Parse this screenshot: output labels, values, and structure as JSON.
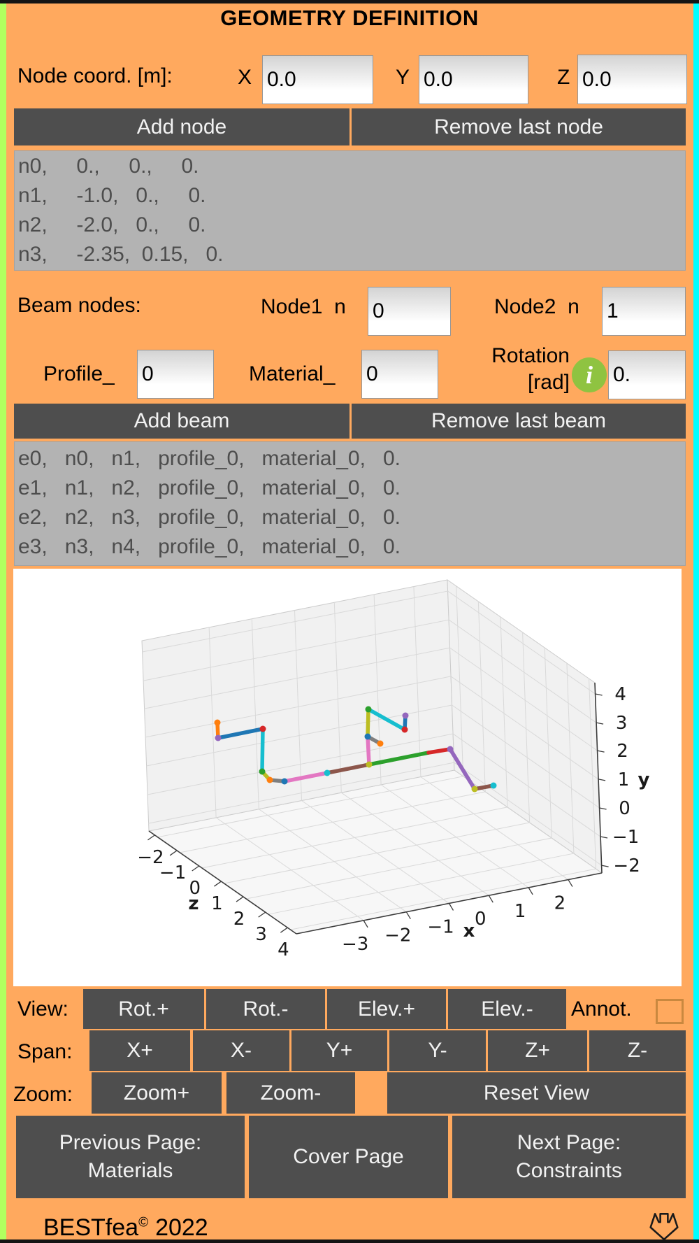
{
  "window": {
    "title": "GEOMETRY DEFINITION",
    "app": "BESTfea",
    "copyright_mark": "©",
    "year": "2022"
  },
  "colors": {
    "background": "#ffa95e",
    "button": "#4e4e4e",
    "list_bg": "#b3b3b3",
    "left_edge": "#b2ff5f",
    "right_edge": "#00ffff",
    "frame_bar": "#141414",
    "info_icon": "#8fc341",
    "checkbox_border": "#c9883f"
  },
  "node_section": {
    "label": "Node coord. [m]:",
    "x_label": "X",
    "x_value": "0.0",
    "y_label": "Y",
    "y_value": "0.0",
    "z_label": "Z",
    "z_value": "0.0",
    "add_button": "Add node",
    "remove_button": "Remove last node",
    "list_rows": [
      "n0,     0.,     0.,     0.",
      "n1,     -1.0,   0.,     0.",
      "n2,     -2.0,   0.,     0.",
      "n3,     -2.35,  0.15,   0."
    ]
  },
  "beam_section": {
    "label": "Beam nodes:",
    "node1_label": "Node1  n",
    "node1_value": "0",
    "node2_label": "Node2  n",
    "node2_value": "1",
    "profile_label": "Profile_",
    "profile_value": "0",
    "material_label": "Material_",
    "material_value": "0",
    "rotation_label_line1": "Rotation",
    "rotation_label_line2": "[rad]",
    "rotation_info_glyph": "i",
    "rotation_value": "0.",
    "add_button": "Add beam",
    "remove_button": "Remove last beam",
    "list_rows": [
      "e0,   n0,   n1,   profile_0,   material_0,   0.",
      "e1,   n1,   n2,   profile_0,   material_0,   0.",
      "e2,   n2,   n3,   profile_0,   material_0,   0.",
      "e3,   n3,   n4,   profile_0,   material_0,   0."
    ]
  },
  "plot": {
    "type": "3d-structure",
    "box": {
      "L": [
        194,
        375
      ],
      "B": [
        405,
        522
      ],
      "R": [
        842,
        435
      ],
      "up": [
        -10,
        -272
      ]
    },
    "pane_fill": "#f1f1f1",
    "floor_fill": "#f7f7f7",
    "grid": "#d9d9d9",
    "edge": "#cccccc",
    "spine": "#3c3c3c",
    "x_axis": {
      "letter": "x",
      "letter_pos": [
        652,
        526
      ],
      "ticks": [
        "−3",
        "−2",
        "−1",
        "0",
        "1",
        "2"
      ],
      "fracs": [
        0.22,
        0.36,
        0.5,
        0.63,
        0.76,
        0.89
      ]
    },
    "z_axis": {
      "letter": "z",
      "letter_pos": [
        258,
        487
      ],
      "ticks": [
        "−2",
        "−1",
        "0",
        "1",
        "2",
        "3",
        "4"
      ],
      "fracs": [
        0.04,
        0.19,
        0.34,
        0.49,
        0.64,
        0.79,
        0.94
      ]
    },
    "y_axis": {
      "letter": "y",
      "letter_pos": [
        902,
        310
      ],
      "ticks": [
        "4",
        "3",
        "2",
        "1",
        "0",
        "−1",
        "−2"
      ],
      "fracs": [
        0.941,
        0.79,
        0.643,
        0.493,
        0.342,
        0.191,
        0.04
      ]
    },
    "beams": [
      {
        "c": "#ff7f0e",
        "a": [
          292,
          220
        ],
        "b": [
          293,
          242
        ]
      },
      {
        "c": "#1f77b4",
        "a": [
          293,
          242
        ],
        "b": [
          357,
          229
        ]
      },
      {
        "c": "#17becf",
        "a": [
          357,
          229
        ],
        "b": [
          356,
          290
        ]
      },
      {
        "c": "#bcbd22",
        "a": [
          356,
          290
        ],
        "b": [
          367,
          302
        ]
      },
      {
        "c": "#7f7f7f",
        "a": [
          367,
          302
        ],
        "b": [
          388,
          304
        ]
      },
      {
        "c": "#e377c2",
        "a": [
          388,
          304
        ],
        "b": [
          449,
          292
        ]
      },
      {
        "c": "#8c564b",
        "a": [
          449,
          292
        ],
        "b": [
          509,
          280
        ]
      },
      {
        "c": "#e377c2",
        "a": [
          509,
          280
        ],
        "b": [
          507,
          240
        ]
      },
      {
        "c": "#bcbd22",
        "a": [
          507,
          240
        ],
        "b": [
          508,
          201
        ]
      },
      {
        "c": "#7f7f7f",
        "a": [
          507,
          240
        ],
        "b": [
          525,
          250
        ]
      },
      {
        "c": "#17becf",
        "a": [
          508,
          201
        ],
        "b": [
          560,
          230
        ]
      },
      {
        "c": "#1f77b4",
        "a": [
          560,
          230
        ],
        "b": [
          561,
          210
        ]
      },
      {
        "c": "#2ca02c",
        "a": [
          509,
          280
        ],
        "b": [
          594,
          263
        ]
      },
      {
        "c": "#d62728",
        "a": [
          594,
          263
        ],
        "b": [
          625,
          258
        ]
      },
      {
        "c": "#9467bd",
        "a": [
          625,
          258
        ],
        "b": [
          660,
          315
        ]
      },
      {
        "c": "#8c564b",
        "a": [
          660,
          315
        ],
        "b": [
          687,
          310
        ]
      }
    ],
    "nodes": [
      {
        "c": "#ff7f0e",
        "p": [
          292,
          220
        ]
      },
      {
        "c": "#9467bd",
        "p": [
          293,
          242
        ]
      },
      {
        "c": "#d62728",
        "p": [
          357,
          229
        ]
      },
      {
        "c": "#2ca02c",
        "p": [
          356,
          290
        ]
      },
      {
        "c": "#ff7f0e",
        "p": [
          367,
          302
        ]
      },
      {
        "c": "#1f77b4",
        "p": [
          388,
          304
        ]
      },
      {
        "c": "#17becf",
        "p": [
          449,
          292
        ]
      },
      {
        "c": "#bcbd22",
        "p": [
          509,
          280
        ]
      },
      {
        "c": "#1f77b4",
        "p": [
          507,
          240
        ]
      },
      {
        "c": "#ff7f0e",
        "p": [
          525,
          250
        ]
      },
      {
        "c": "#2ca02c",
        "p": [
          508,
          201
        ]
      },
      {
        "c": "#d62728",
        "p": [
          560,
          230
        ]
      },
      {
        "c": "#9467bd",
        "p": [
          561,
          210
        ]
      },
      {
        "c": "#9467bd",
        "p": [
          625,
          258
        ]
      },
      {
        "c": "#bcbd22",
        "p": [
          660,
          315
        ]
      },
      {
        "c": "#17becf",
        "p": [
          687,
          310
        ]
      }
    ]
  },
  "view_controls": {
    "label": "View:",
    "rot_plus": "Rot.+",
    "rot_minus": "Rot.-",
    "elev_plus": "Elev.+",
    "elev_minus": "Elev.-",
    "annot_label": "Annot.",
    "annot_checked": false
  },
  "span_controls": {
    "label": "Span:",
    "buttons": [
      "X+",
      "X-",
      "Y+",
      "Y-",
      "Z+",
      "Z-"
    ]
  },
  "zoom_controls": {
    "label": "Zoom:",
    "zoom_in": "Zoom+",
    "zoom_out": "Zoom-",
    "reset": "Reset View"
  },
  "nav": {
    "prev_line1": "Previous Page:",
    "prev_line2": "Materials",
    "cover": "Cover Page",
    "next_line1": "Next Page:",
    "next_line2": "Constraints"
  }
}
